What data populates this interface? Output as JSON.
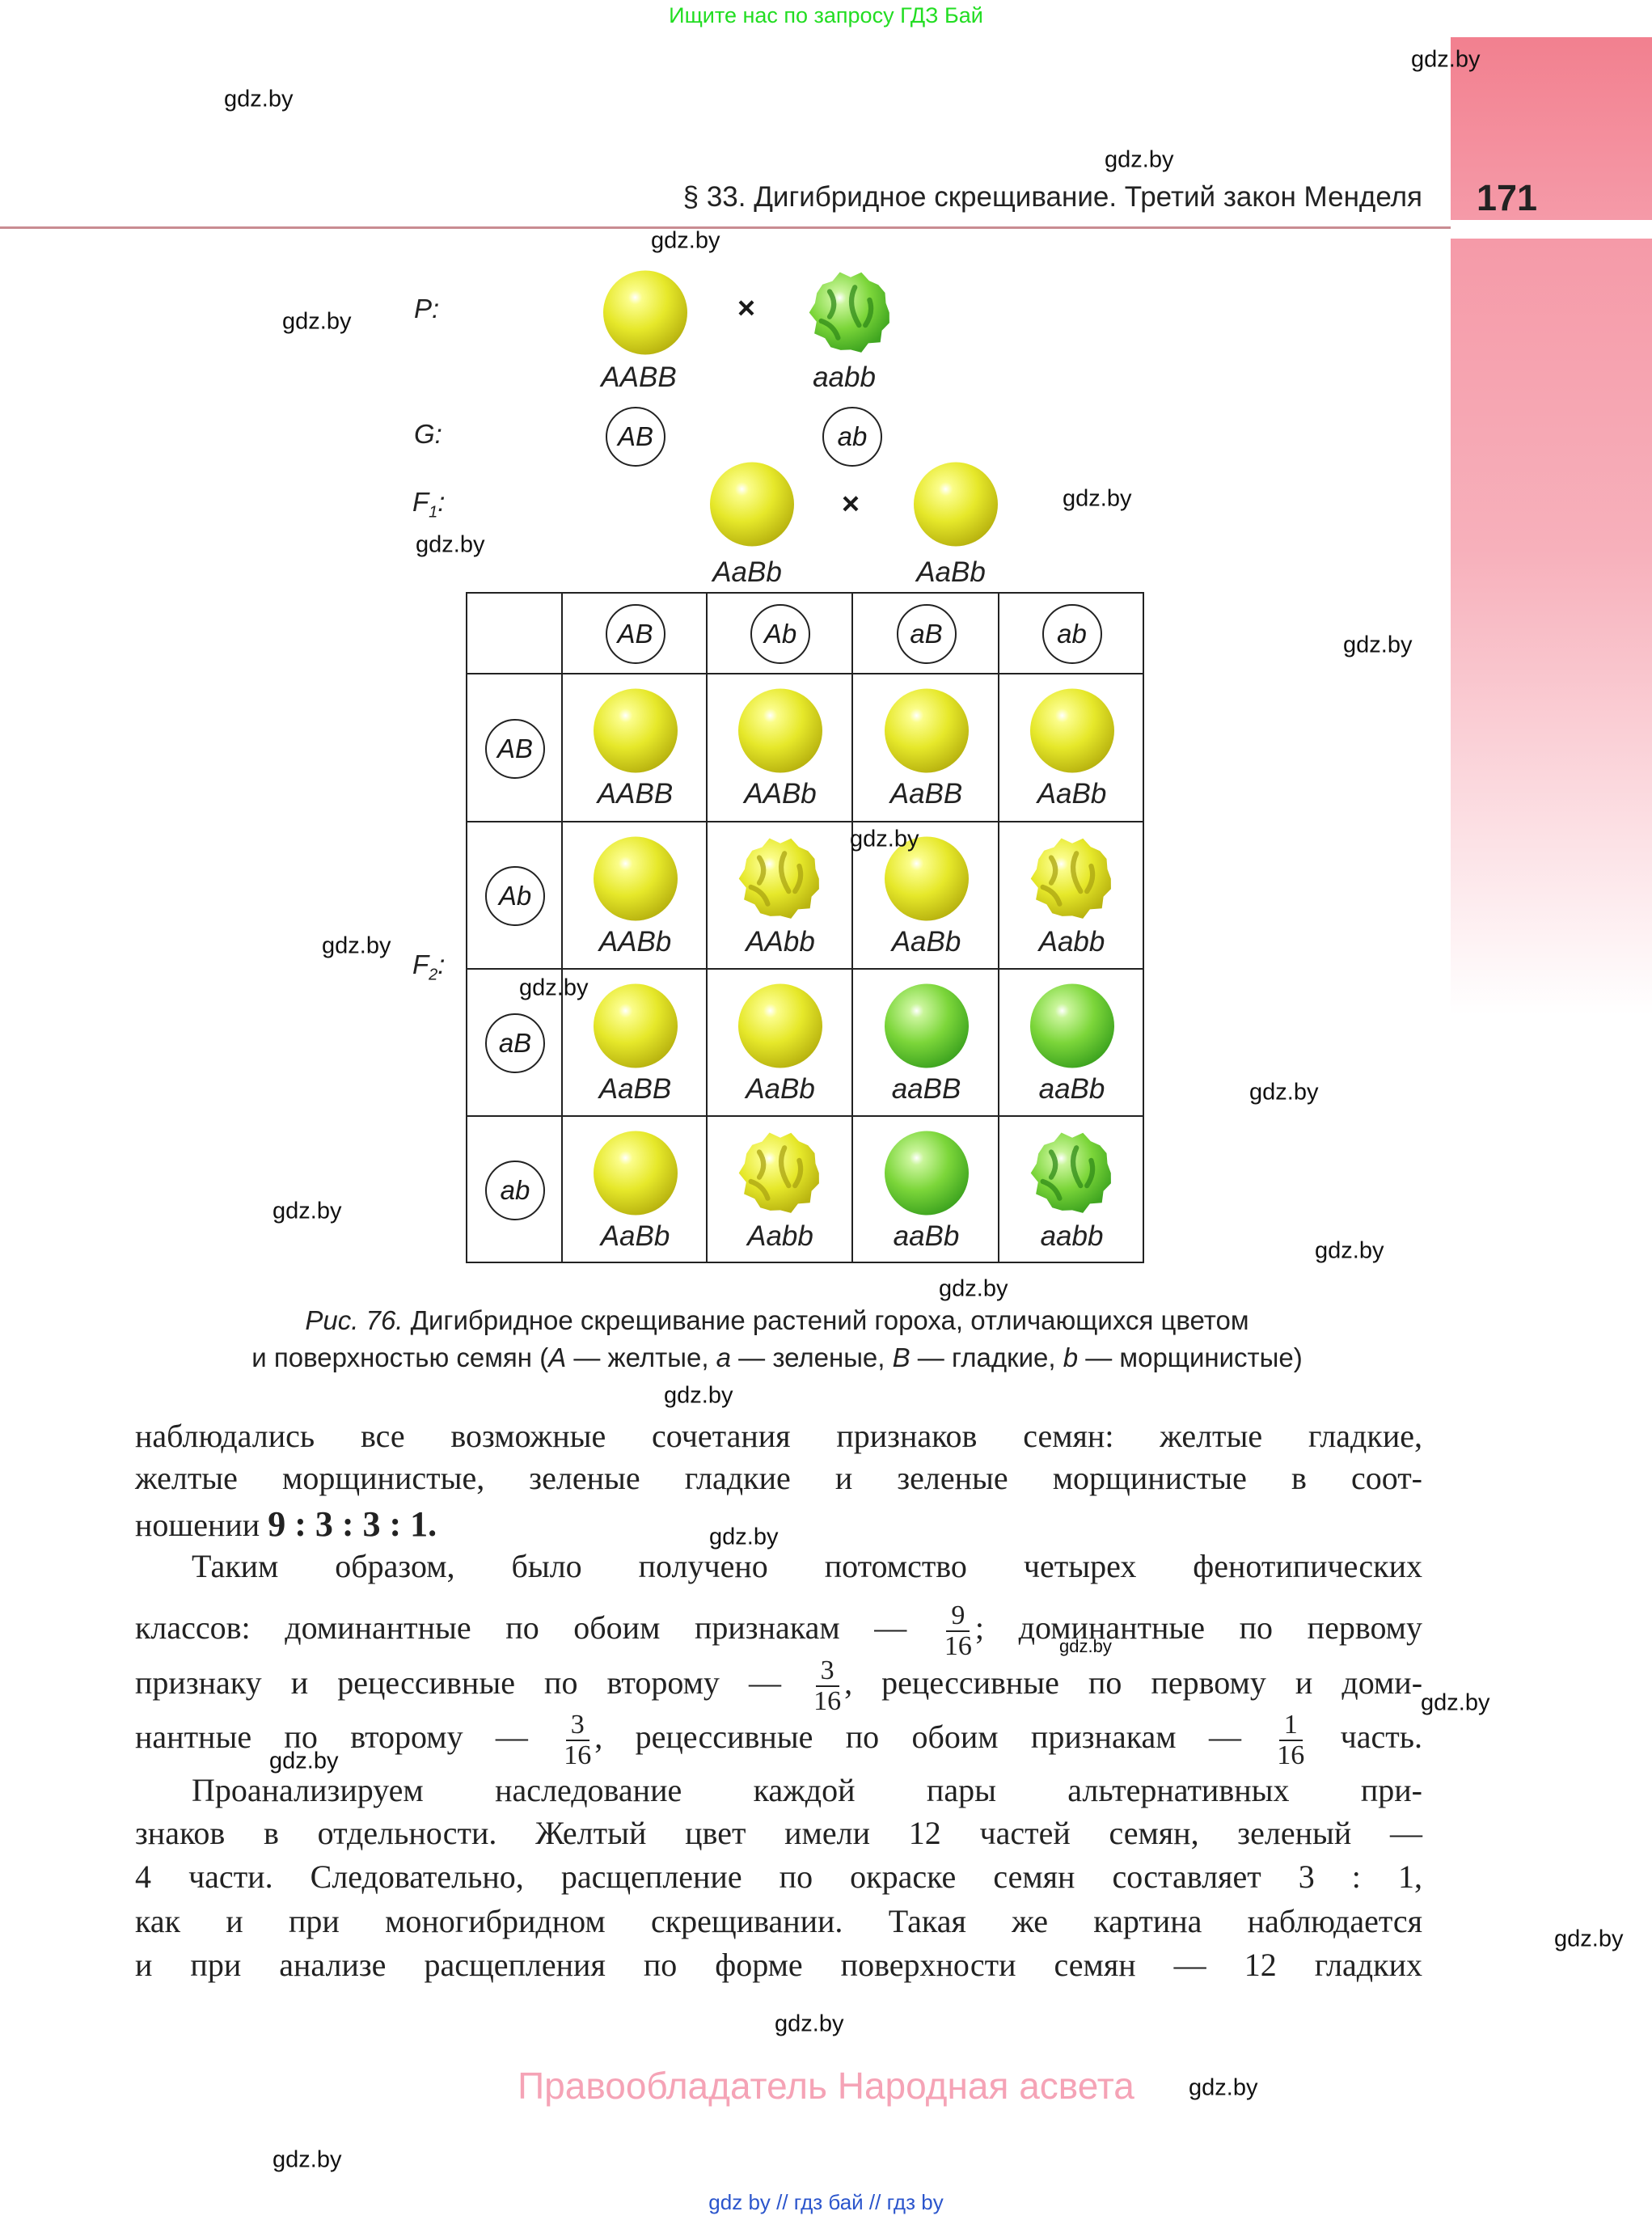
{
  "top_note": "Ищите нас по запросу ГДЗ Бай",
  "header": {
    "running_head": "§ 33. Дигибридное скрещивание. Третий закон Менделя",
    "page_number": "171"
  },
  "colors": {
    "accent_band": "#f2808f",
    "yellow_pea": "#e6e82a",
    "green_pea": "#7cd63a"
  },
  "diagram": {
    "labels": {
      "P": "P:",
      "G": "G:",
      "F1": "F",
      "F1_sub": "1",
      "F1_colon": ":",
      "F2": "F",
      "F2_sub": "2",
      "F2_colon": ":",
      "cross": "×"
    },
    "parents": [
      {
        "genotype": "AABB",
        "pea": "yellow-smooth"
      },
      {
        "genotype": "aabb",
        "pea": "green-wrinkled"
      }
    ],
    "gametes": [
      "AB",
      "ab"
    ],
    "f1": [
      {
        "genotype": "AaBb",
        "pea": "yellow-smooth"
      },
      {
        "genotype": "AaBb",
        "pea": "yellow-smooth"
      }
    ],
    "punnett": {
      "col_gametes": [
        "AB",
        "Ab",
        "aB",
        "ab"
      ],
      "row_gametes": [
        "AB",
        "Ab",
        "aB",
        "ab"
      ],
      "cells": [
        [
          {
            "g": "AABB",
            "p": "yellow-smooth"
          },
          {
            "g": "AABb",
            "p": "yellow-smooth"
          },
          {
            "g": "AaBB",
            "p": "yellow-smooth"
          },
          {
            "g": "AaBb",
            "p": "yellow-smooth"
          }
        ],
        [
          {
            "g": "AABb",
            "p": "yellow-smooth"
          },
          {
            "g": "AAbb",
            "p": "yellow-wrinkled"
          },
          {
            "g": "AaBb",
            "p": "yellow-smooth"
          },
          {
            "g": "Aabb",
            "p": "yellow-wrinkled"
          }
        ],
        [
          {
            "g": "AaBB",
            "p": "yellow-smooth"
          },
          {
            "g": "AaBb",
            "p": "yellow-smooth"
          },
          {
            "g": "aaBB",
            "p": "green-smooth"
          },
          {
            "g": "aaBb",
            "p": "green-smooth"
          }
        ],
        [
          {
            "g": "AaBb",
            "p": "yellow-smooth"
          },
          {
            "g": "Aabb",
            "p": "yellow-wrinkled"
          },
          {
            "g": "aaBb",
            "p": "green-smooth"
          },
          {
            "g": "aabb",
            "p": "green-wrinkled"
          }
        ]
      ]
    }
  },
  "caption": [
    [
      {
        "t": "Рис. 76.",
        "i": true
      },
      {
        "t": " Дигибридное скрещивание растений гороха, отличающихся цветом"
      }
    ],
    [
      {
        "t": "и поверхностью семян ("
      },
      {
        "t": "A",
        "i": true
      },
      {
        "t": " — желтые, "
      },
      {
        "t": "a",
        "i": true
      },
      {
        "t": " — зеленые, "
      },
      {
        "t": "B",
        "i": true
      },
      {
        "t": " — гладкие, "
      },
      {
        "t": "b",
        "i": true
      },
      {
        "t": " — морщинистые)"
      }
    ]
  ],
  "body_lines": [
    {
      "segs": [
        "наблюдались все возможные сочетания признаков семян: желтые гладкие,"
      ]
    },
    {
      "segs": [
        "желтые морщинистые, зеленые гладкие и зеленые морщинистые в соот-"
      ]
    },
    {
      "last": true,
      "segs": [
        "ношении ",
        {
          "b": "9 : 3 : 3 : 1."
        }
      ]
    },
    {
      "indent": true,
      "segs": [
        "Таким образом, было получено потомство четырех фенотипических"
      ]
    },
    {
      "segs": [
        "классов: доминантные по обоим признакам — ",
        {
          "n": "9",
          "d": "16"
        },
        "; доминантные по первому"
      ]
    },
    {
      "segs": [
        "признаку и рецессивные по второму — ",
        {
          "n": "3",
          "d": "16"
        },
        ", рецессивные по первому и доми-"
      ]
    },
    {
      "segs": [
        "нантные по второму — ",
        {
          "n": "3",
          "d": "16"
        },
        ", рецессивные по обоим признакам — ",
        {
          "n": "1",
          "d": "16"
        },
        " часть."
      ]
    },
    {
      "indent": true,
      "segs": [
        "Проанализируем наследование каждой пары альтернативных при-"
      ]
    },
    {
      "segs": [
        "знаков в отдельности. Желтый цвет имели 12 частей семян, зеленый —"
      ]
    },
    {
      "segs": [
        "4 части. Следовательно, расщепление по окраске семян составляет 3 : 1,"
      ]
    },
    {
      "segs": [
        "как и при моногибридном скрещивании. Такая же картина наблюдается"
      ]
    },
    {
      "segs": [
        "и при анализе расщепления по форме поверхности семян — 12 гладких"
      ]
    }
  ],
  "watermark": "gdz.by",
  "footer": "Правообладатель Народная асвета",
  "bottom_note": "gdz by  //  гдз бай  //  гдз by"
}
